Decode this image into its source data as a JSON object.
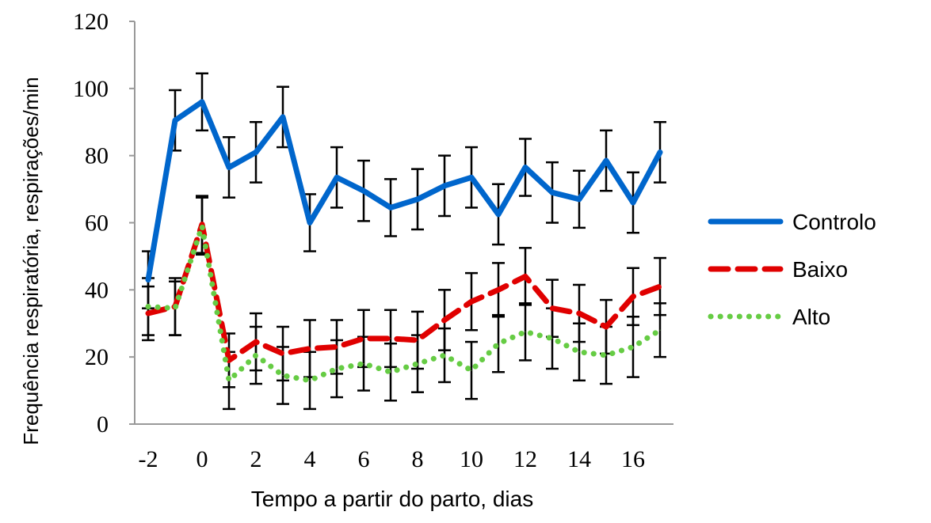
{
  "chart_data": {
    "type": "line",
    "title": "",
    "xlabel": "Tempo a partir do parto, dias",
    "ylabel": "Frequência respiratória, respirações/min",
    "ylim": [
      0,
      120
    ],
    "yticks": [
      0,
      20,
      40,
      60,
      80,
      100,
      120
    ],
    "x": [
      -2,
      -1,
      0,
      1,
      2,
      3,
      4,
      5,
      6,
      7,
      8,
      9,
      10,
      11,
      12,
      13,
      14,
      15,
      16,
      17
    ],
    "xticks": [
      -2,
      0,
      2,
      4,
      6,
      8,
      10,
      12,
      14,
      16
    ],
    "grid": false,
    "legend_position": "right",
    "series": [
      {
        "name": "Controlo",
        "color": "#0066CC",
        "style": "solid",
        "values": [
          43,
          90.5,
          96,
          76.5,
          81,
          91.5,
          60,
          73.5,
          69.5,
          64.5,
          67,
          71,
          73.5,
          62.5,
          76.5,
          69,
          67,
          78.5,
          66,
          81
        ],
        "error": [
          8.5,
          9,
          8.5,
          9,
          9,
          9,
          8.5,
          9,
          9,
          8.5,
          9,
          9,
          9,
          9,
          8.5,
          9,
          8.5,
          9,
          9,
          9
        ]
      },
      {
        "name": "Baixo",
        "color": "#E00000",
        "style": "dashed",
        "values": [
          33,
          35,
          59.5,
          19,
          24.5,
          21,
          22.5,
          23,
          25.5,
          25.5,
          25,
          31,
          36.5,
          40,
          44,
          34.5,
          33,
          29,
          38,
          41
        ],
        "error": [
          8,
          8.5,
          8.5,
          8,
          8.5,
          8,
          8.5,
          8,
          8.5,
          8.5,
          8.5,
          9,
          8.5,
          8,
          8.5,
          8.5,
          8.5,
          8,
          8.5,
          8.5
        ]
      },
      {
        "name": "Alto",
        "color": "#66CC44",
        "style": "dotted",
        "values": [
          35,
          34.5,
          59,
          13,
          20.5,
          14.5,
          13,
          16.5,
          18,
          15.5,
          18,
          20.5,
          16,
          24,
          27.5,
          25.5,
          21.5,
          20.5,
          23,
          28
        ],
        "error": [
          8.5,
          8,
          8.5,
          8.5,
          8.5,
          8.5,
          8.5,
          8.5,
          8,
          8.5,
          8.5,
          8,
          8.5,
          8.5,
          8.5,
          9,
          8.5,
          8.5,
          9,
          8
        ]
      }
    ]
  }
}
